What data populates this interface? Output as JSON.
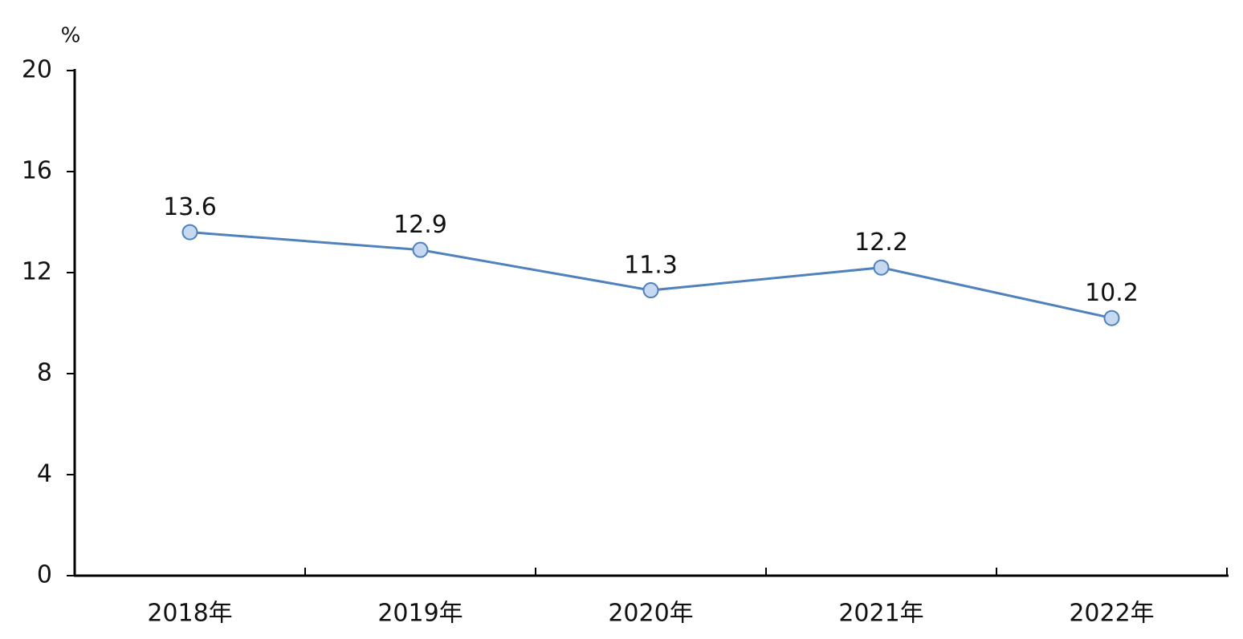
{
  "chart_data": {
    "type": "line",
    "y_label": "%",
    "categories": [
      "2018年",
      "2019年",
      "2020年",
      "2021年",
      "2022年"
    ],
    "series": [
      {
        "color": "#4f81bd",
        "values": [
          13.6,
          12.9,
          11.3,
          12.2,
          10.2
        ]
      }
    ],
    "ylim": [
      0,
      20
    ],
    "yticks": [
      0,
      4,
      8,
      12,
      16,
      20
    ]
  }
}
